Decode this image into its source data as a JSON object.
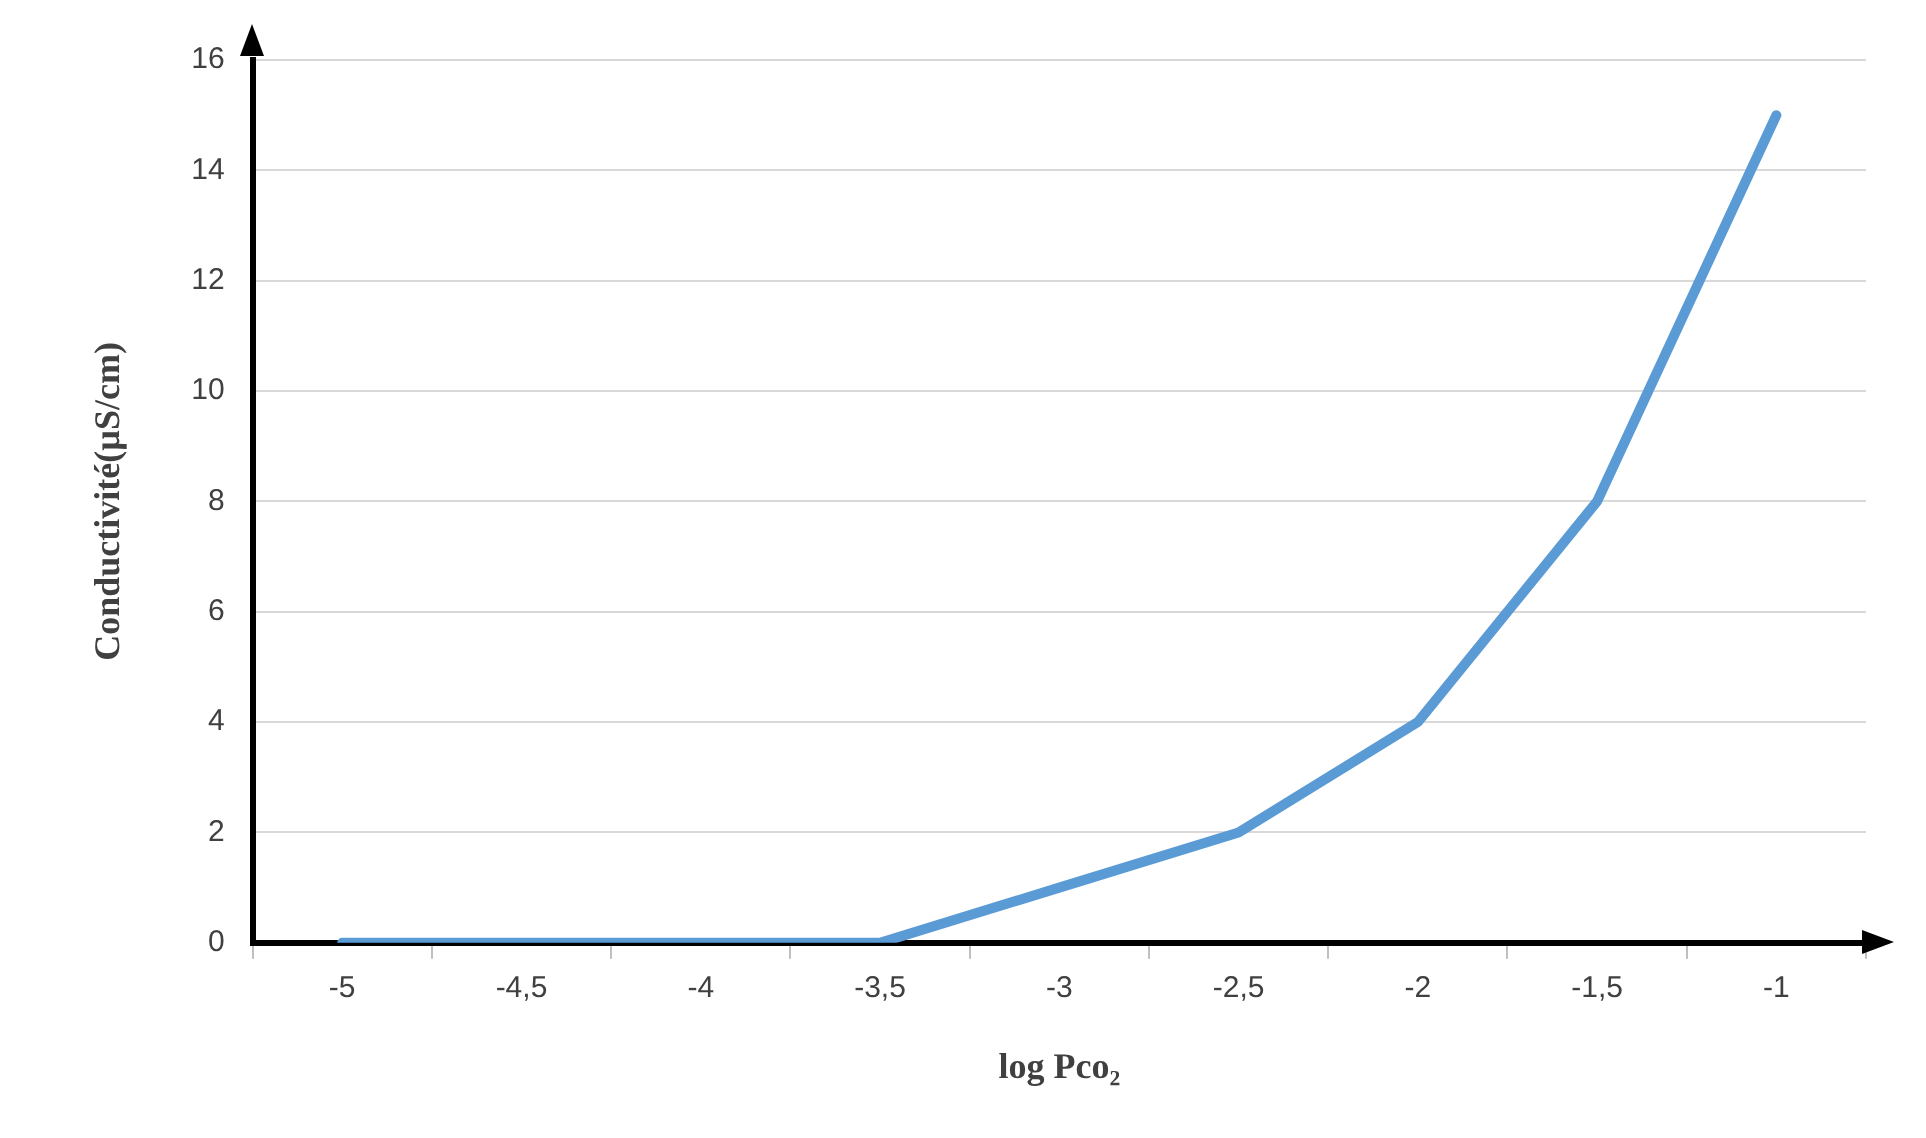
{
  "chart_data": {
    "type": "line",
    "xlabel": "log Pco₂",
    "ylabel": "Conductivité(µS/cm)",
    "categories": [
      "-5",
      "-4,5",
      "-4",
      "-3,5",
      "-3",
      "-2,5",
      "-2",
      "-1,5",
      "-1"
    ],
    "series": [
      {
        "color": "#5b9bd5",
        "values": [
          0,
          0,
          0,
          0,
          1,
          2,
          4,
          8,
          15
        ]
      }
    ],
    "ylim": [
      0,
      16
    ],
    "yticks": [
      0,
      2,
      4,
      6,
      8,
      10,
      12,
      14,
      16
    ],
    "grid": "y",
    "legend": false,
    "marker": "none",
    "line_style": "solid"
  }
}
